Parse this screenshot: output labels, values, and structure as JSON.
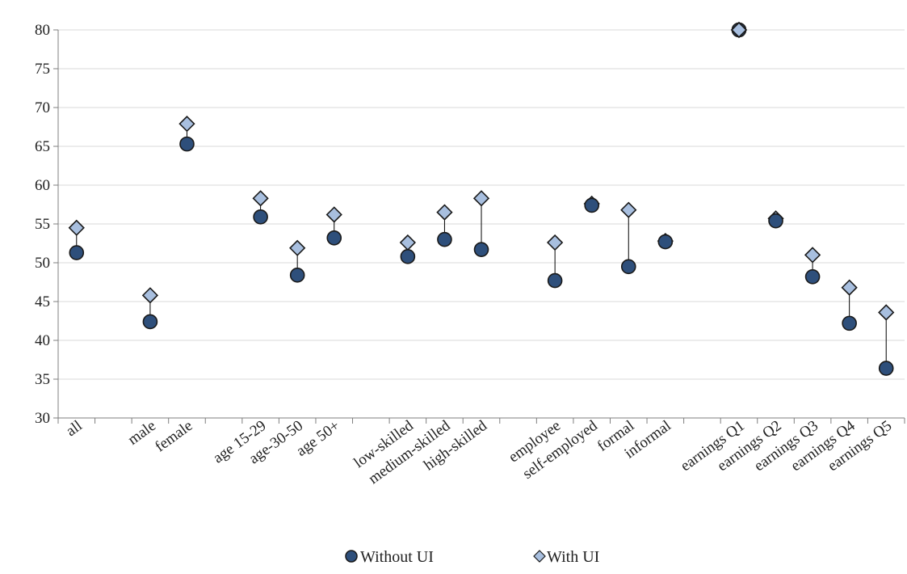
{
  "chart_data": {
    "type": "scatter",
    "title": "",
    "xlabel": "",
    "ylabel": "",
    "ylim": [
      30,
      80
    ],
    "yticks": [
      30,
      35,
      40,
      45,
      50,
      55,
      60,
      65,
      70,
      75,
      80
    ],
    "grid": true,
    "legend_position": "bottom-center",
    "colors": {
      "without": "#2e4f7b",
      "with": "#a8bfdf",
      "marker_edge": "#1a1a1a",
      "grid": "#d9d9d9",
      "axis": "#7f7f7f"
    },
    "slots": [
      "all",
      "",
      "male",
      "female",
      "",
      "age 15-29",
      "age-30-50",
      "age 50+",
      "",
      "low-skilled",
      "medium-skilled",
      "high-skilled",
      "",
      "employee",
      "self-employed",
      "formal",
      "informal",
      "",
      "earnings Q1",
      "earnings Q2",
      "earnings Q3",
      "earnings Q4",
      "earnings Q5"
    ],
    "series": [
      {
        "name": "Without UI",
        "marker": "circle",
        "values": [
          51.3,
          null,
          42.4,
          65.3,
          null,
          55.9,
          48.4,
          53.2,
          null,
          50.8,
          53.0,
          51.7,
          null,
          47.7,
          57.4,
          49.5,
          52.7,
          null,
          80.0,
          55.4,
          48.2,
          42.2,
          36.4
        ]
      },
      {
        "name": "With UI",
        "marker": "diamond",
        "values": [
          54.5,
          null,
          45.8,
          67.9,
          null,
          58.3,
          51.9,
          56.2,
          null,
          52.6,
          56.5,
          58.3,
          null,
          52.6,
          57.6,
          56.8,
          52.8,
          null,
          80.0,
          55.7,
          51.0,
          46.8,
          43.6
        ]
      }
    ]
  }
}
